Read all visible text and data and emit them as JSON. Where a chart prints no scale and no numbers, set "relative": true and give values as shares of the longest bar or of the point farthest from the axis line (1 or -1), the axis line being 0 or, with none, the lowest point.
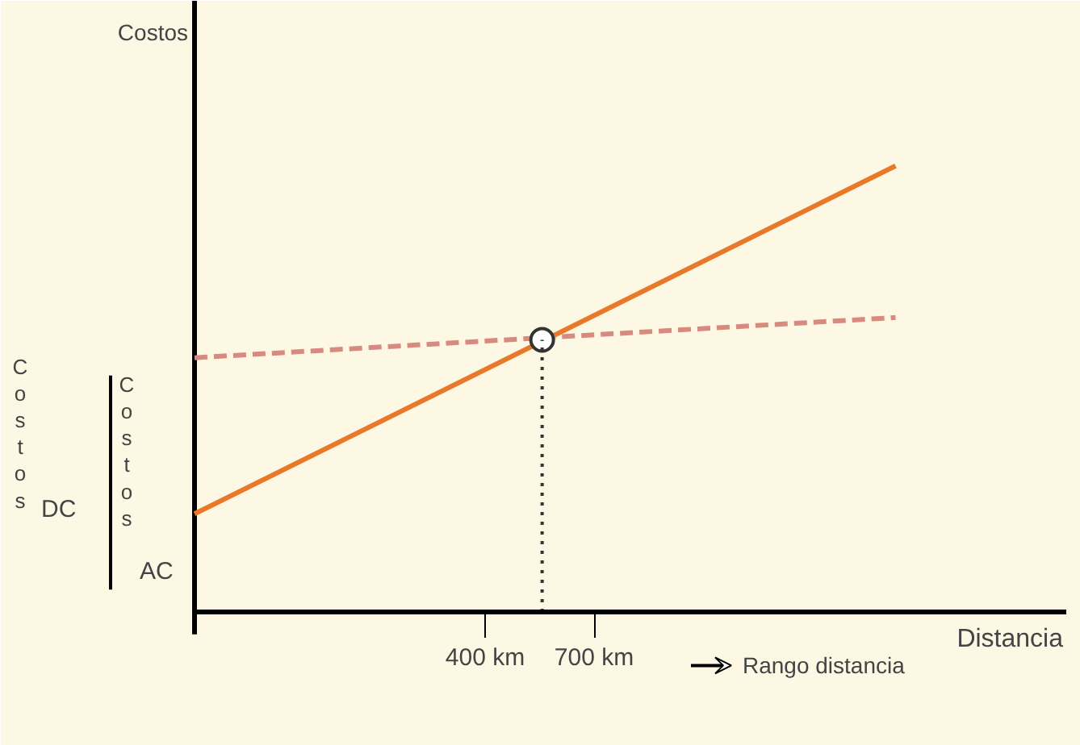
{
  "chart_data": {
    "type": "line",
    "relative": true,
    "xlabel": "Distancia",
    "xlim": [
      -400,
      2000
    ],
    "xticks": [
      {
        "value": 400,
        "label": "400 km"
      },
      {
        "value": 700,
        "label": "700 km"
      }
    ],
    "series": [
      {
        "x": [
          -400,
          1530
        ],
        "values": [
          0.22,
          1
        ],
        "color": "#e8792a",
        "line_style": "solid"
      },
      {
        "x": [
          -400,
          1530
        ],
        "values": [
          0.57,
          0.66
        ],
        "color": "#d98a80",
        "line_style": "dashed"
      },
      {
        "type": "scatter",
        "x": [
          557
        ],
        "values": [
          0.61
        ],
        "color": "#333333",
        "marker": "circle"
      }
    ],
    "ref_lines": [
      {
        "axis": "x",
        "value": 557,
        "line_style": "dotted",
        "color": "#333333"
      }
    ],
    "annotations": [
      "Costos",
      "Costos",
      "DC",
      "Costos",
      "AC",
      "Rango distancia"
    ],
    "grid": false
  }
}
